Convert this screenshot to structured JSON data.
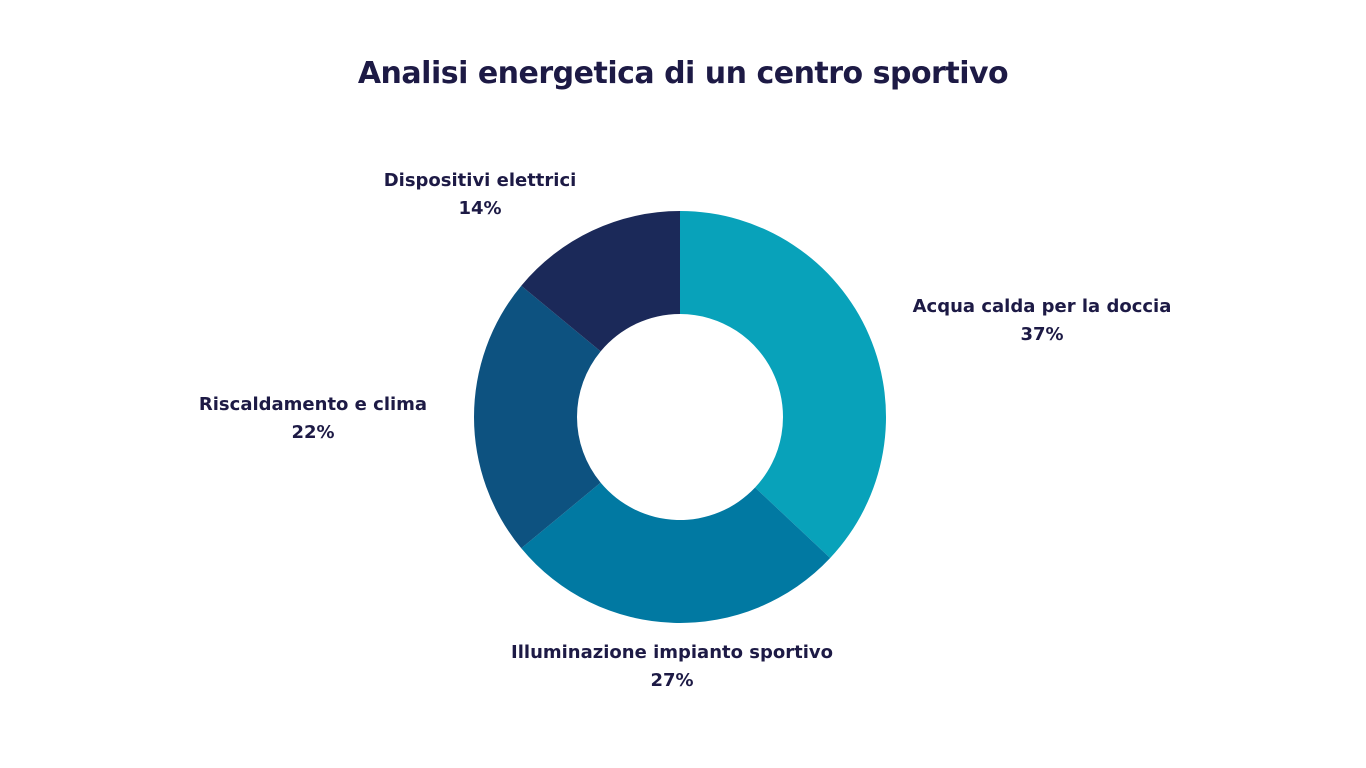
{
  "chart_data": {
    "type": "pie",
    "variant": "donut",
    "title": "Analisi energetica di un centro sportivo",
    "categories": [
      "Acqua calda per la doccia",
      "Illuminazione impianto sportivo",
      "Riscaldamento e clima",
      "Dispositivi elettrici"
    ],
    "values": [
      37,
      27,
      22,
      14
    ],
    "value_labels": [
      "37%",
      "27%",
      "22%",
      "14%"
    ],
    "colors": [
      "#08a2ba",
      "#0179a2",
      "#0d5280",
      "#1b2959"
    ],
    "legend": "none",
    "labels_placement": "outside"
  }
}
